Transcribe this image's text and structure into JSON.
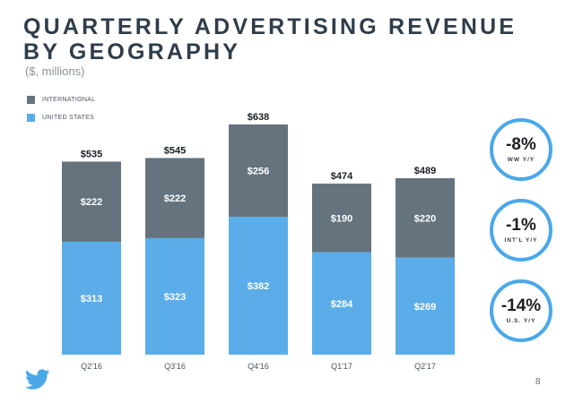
{
  "title_lines": [
    "QUARTERLY ADVERTISING REVENUE",
    "BY GEOGRAPHY"
  ],
  "subtitle": "($, millions)",
  "legend": [
    {
      "label": "INTERNATIONAL",
      "color": "#65737e"
    },
    {
      "label": "UNITED STATES",
      "color": "#5aade8"
    }
  ],
  "chart_data": {
    "type": "bar",
    "stacked": true,
    "categories": [
      "Q2'16",
      "Q3'16",
      "Q4'16",
      "Q1'17",
      "Q2'17"
    ],
    "series": [
      {
        "name": "UNITED STATES",
        "color": "#5aade8",
        "values": [
          313,
          323,
          382,
          284,
          269
        ],
        "labels": [
          "$313",
          "$323",
          "$382",
          "$284",
          "$269"
        ]
      },
      {
        "name": "INTERNATIONAL",
        "color": "#65737e",
        "values": [
          222,
          222,
          256,
          190,
          220
        ],
        "labels": [
          "$222",
          "$222",
          "$256",
          "$190",
          "$220"
        ]
      }
    ],
    "totals": [
      535,
      545,
      638,
      474,
      489
    ],
    "total_labels": [
      "$535",
      "$545",
      "$638",
      "$474",
      "$489"
    ],
    "ylim": [
      0,
      700
    ],
    "grid": false,
    "legend_position": "top-left"
  },
  "badges": [
    {
      "value": "-8%",
      "label": "WW Y/Y"
    },
    {
      "value": "-1%",
      "label": "INT'L Y/Y"
    },
    {
      "value": "-14%",
      "label": "U.S. Y/Y"
    }
  ],
  "logo": "twitter-bird-icon",
  "page_number": "8"
}
